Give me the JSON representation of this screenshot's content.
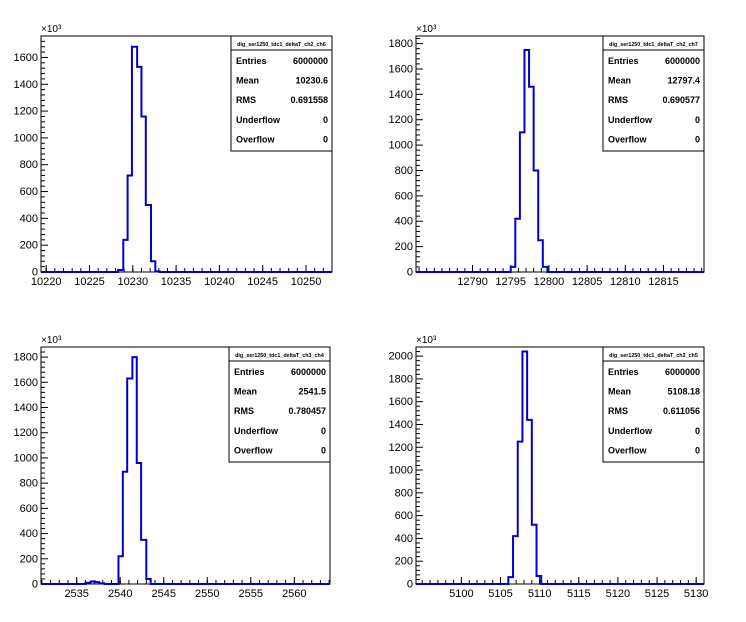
{
  "exponent_label": "×10³",
  "chart_data": [
    {
      "type": "histogram",
      "title": "dig_ser1250_tdc1_deltaT_ch2_ch6",
      "xlim": [
        10219.4,
        10253.0
      ],
      "ylim": [
        0,
        1760
      ],
      "xticks": [
        10220,
        10225,
        10230,
        10235,
        10240,
        10245,
        10250
      ],
      "yticks": [
        0,
        200,
        400,
        600,
        800,
        1000,
        1200,
        1400,
        1600
      ],
      "y_multiplier": "10^3",
      "bins": [
        {
          "x0": 10228.3,
          "x1": 10228.9,
          "y": 15
        },
        {
          "x0": 10228.9,
          "x1": 10229.4,
          "y": 240
        },
        {
          "x0": 10229.4,
          "x1": 10229.9,
          "y": 720
        },
        {
          "x0": 10229.9,
          "x1": 10230.5,
          "y": 1680
        },
        {
          "x0": 10230.5,
          "x1": 10231.0,
          "y": 1530
        },
        {
          "x0": 10231.0,
          "x1": 10231.5,
          "y": 1160
        },
        {
          "x0": 10231.5,
          "x1": 10232.1,
          "y": 500
        },
        {
          "x0": 10232.1,
          "x1": 10232.6,
          "y": 80
        },
        {
          "x0": 10232.6,
          "x1": 10233.1,
          "y": 5
        }
      ],
      "stats": {
        "Entries": "6000000",
        "Mean": "10230.6",
        "RMS": "0.691558",
        "Underflow": "0",
        "Overflow": "0"
      }
    },
    {
      "type": "histogram",
      "title": "dig_ser1250_tdc1_deltaT_ch2_ch7",
      "xlim": [
        12782.6,
        12820.3
      ],
      "ylim": [
        0,
        1860
      ],
      "xticks": [
        12790,
        12795,
        12800,
        12805,
        12810,
        12815
      ],
      "yticks": [
        0,
        200,
        400,
        600,
        800,
        1000,
        1200,
        1400,
        1600,
        1800
      ],
      "y_multiplier": "10^3",
      "bins": [
        {
          "x0": 12795.0,
          "x1": 12795.6,
          "y": 40
        },
        {
          "x0": 12795.6,
          "x1": 12796.2,
          "y": 420
        },
        {
          "x0": 12796.2,
          "x1": 12796.8,
          "y": 1100
        },
        {
          "x0": 12796.8,
          "x1": 12797.4,
          "y": 1750
        },
        {
          "x0": 12797.4,
          "x1": 12798.0,
          "y": 1460
        },
        {
          "x0": 12798.0,
          "x1": 12798.6,
          "y": 800
        },
        {
          "x0": 12798.6,
          "x1": 12799.2,
          "y": 250
        },
        {
          "x0": 12799.2,
          "x1": 12799.8,
          "y": 40
        }
      ],
      "stats": {
        "Entries": "6000000",
        "Mean": "12797.4",
        "RMS": "0.690577",
        "Underflow": "0",
        "Overflow": "0"
      }
    },
    {
      "type": "histogram",
      "title": "dig_ser1250_tdc1_deltaT_ch3_ch4",
      "xlim": [
        2530.9,
        2564.1
      ],
      "ylim": [
        0,
        1880
      ],
      "xticks": [
        2535,
        2540,
        2545,
        2550,
        2555,
        2560
      ],
      "yticks": [
        0,
        200,
        400,
        600,
        800,
        1000,
        1200,
        1400,
        1600,
        1800
      ],
      "y_multiplier": "10^3",
      "bins": [
        {
          "x0": 2536.0,
          "x1": 2536.6,
          "y": 10
        },
        {
          "x0": 2536.6,
          "x1": 2537.1,
          "y": 20
        },
        {
          "x0": 2537.1,
          "x1": 2537.6,
          "y": 15
        },
        {
          "x0": 2537.6,
          "x1": 2538.2,
          "y": 5
        },
        {
          "x0": 2539.8,
          "x1": 2540.3,
          "y": 220
        },
        {
          "x0": 2540.3,
          "x1": 2540.8,
          "y": 890
        },
        {
          "x0": 2540.8,
          "x1": 2541.4,
          "y": 1630
        },
        {
          "x0": 2541.4,
          "x1": 2541.9,
          "y": 1800
        },
        {
          "x0": 2541.9,
          "x1": 2542.4,
          "y": 960
        },
        {
          "x0": 2542.4,
          "x1": 2543.0,
          "y": 350
        },
        {
          "x0": 2543.0,
          "x1": 2543.5,
          "y": 40
        }
      ],
      "stats": {
        "Entries": "6000000",
        "Mean": "2541.5",
        "RMS": "0.780457",
        "Underflow": "0",
        "Overflow": "0"
      }
    },
    {
      "type": "histogram",
      "title": "dig_ser1250_tdc1_deltaT_ch3_ch5",
      "xlim": [
        5094.2,
        5131.0
      ],
      "ylim": [
        0,
        2080
      ],
      "xticks": [
        5100,
        5105,
        5110,
        5115,
        5120,
        5125,
        5130
      ],
      "yticks": [
        0,
        200,
        400,
        600,
        800,
        1000,
        1200,
        1400,
        1600,
        1800,
        2000
      ],
      "y_multiplier": "10^3",
      "bins": [
        {
          "x0": 5106.0,
          "x1": 5106.6,
          "y": 60
        },
        {
          "x0": 5106.6,
          "x1": 5107.2,
          "y": 420
        },
        {
          "x0": 5107.2,
          "x1": 5107.8,
          "y": 1250
        },
        {
          "x0": 5107.8,
          "x1": 5108.4,
          "y": 2040
        },
        {
          "x0": 5108.4,
          "x1": 5109.0,
          "y": 1440
        },
        {
          "x0": 5109.0,
          "x1": 5109.6,
          "y": 520
        },
        {
          "x0": 5109.6,
          "x1": 5110.2,
          "y": 70
        }
      ],
      "stats": {
        "Entries": "6000000",
        "Mean": "5108.18",
        "RMS": "0.611056",
        "Underflow": "0",
        "Overflow": "0"
      }
    }
  ]
}
